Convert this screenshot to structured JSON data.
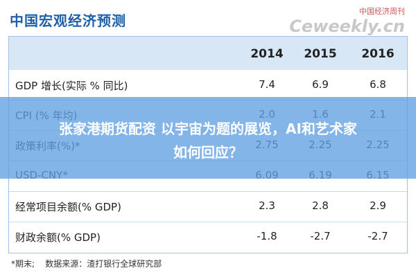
{
  "header": {
    "title": "中国宏观经济预测",
    "watermark_cn": "中国经济周刊",
    "watermark_en": "Ceweekly.cn"
  },
  "table": {
    "columns": [
      "2014",
      "2015",
      "2016"
    ],
    "rows": [
      [
        "GDP 增长(实际 % 同比)",
        "7.4",
        "6.9",
        "6.8"
      ],
      [
        "CPI (% 年均)",
        "2.0",
        "1.6",
        "2.1"
      ],
      [
        "政策利率(%)*",
        "2.75",
        "2.25",
        "2.25"
      ],
      [
        "USD-CNY*",
        "6.09",
        "6.19",
        "6.15"
      ],
      [
        "经常项目余额(% GDP)",
        "2.3",
        "2.8",
        "2.9"
      ],
      [
        "财政余额(% GDP)",
        "-1.8",
        "-2.7",
        "-2.7"
      ]
    ]
  },
  "footer": "*期末;    数据来源：渣打银行全球研究部",
  "overlay": {
    "lines": [
      "张家港期货配资 以宇宙为题的展览，AI和艺术家",
      "如何回应？"
    ]
  }
}
